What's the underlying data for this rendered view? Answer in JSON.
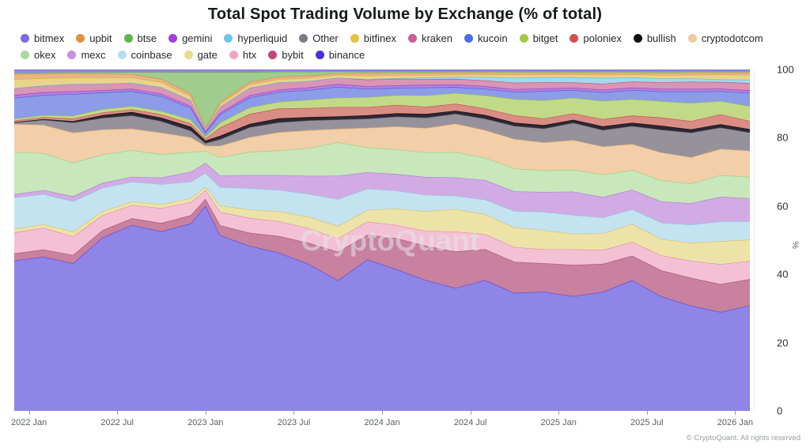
{
  "header": {
    "title": "Total Spot Trading Volume by Exchange (% of total)"
  },
  "watermark": {
    "text": "CryptoQuant"
  },
  "footer": {
    "text": "© CryptoQuant. All rights reserved"
  },
  "legend": {
    "rows": [
      [
        {
          "name": "bitmex",
          "color": "#7a6ae4"
        },
        {
          "name": "upbit",
          "color": "#e29140"
        },
        {
          "name": "btse",
          "color": "#5fb44c"
        },
        {
          "name": "gemini",
          "color": "#a43fd8"
        },
        {
          "name": "hyperliquid",
          "color": "#6ec5e8"
        },
        {
          "name": "Other",
          "color": "#7c7a87"
        },
        {
          "name": "bitfinex",
          "color": "#e2c23e"
        },
        {
          "name": "kraken",
          "color": "#c95f95"
        },
        {
          "name": "kucoin",
          "color": "#4e6de2"
        },
        {
          "name": "bitget",
          "color": "#a4c848"
        },
        {
          "name": "poloniex",
          "color": "#d45050"
        },
        {
          "name": "bullish",
          "color": "#101010"
        },
        {
          "name": "cryptodotcom",
          "color": "#efc9a0"
        }
      ],
      [
        {
          "name": "okex",
          "color": "#a8dba0"
        },
        {
          "name": "mexc",
          "color": "#c791e0"
        },
        {
          "name": "coinbase",
          "color": "#b5ddf0"
        },
        {
          "name": "gate",
          "color": "#e5d993"
        },
        {
          "name": "htx",
          "color": "#f2a5c3"
        },
        {
          "name": "bybit",
          "color": "#c1457f"
        },
        {
          "name": "binance",
          "color": "#4a30d8"
        }
      ]
    ]
  },
  "chart_data": {
    "type": "area",
    "stacked": true,
    "normalized_percent": true,
    "title": "Total Spot Trading Volume by Exchange (% of total)",
    "xlabel": "",
    "ylabel": "%",
    "ylim": [
      0,
      100
    ],
    "grid": false,
    "legend_position": "top",
    "x_unit": "months_since_2021_12",
    "x": [
      0,
      2,
      4,
      6,
      8,
      10,
      12,
      13,
      14,
      16,
      18,
      20,
      22,
      24,
      26,
      28,
      30,
      32,
      34,
      36,
      38,
      40,
      42,
      44,
      46,
      48,
      50
    ],
    "x_ticks": [
      {
        "t": 1,
        "label": "2022 Jan"
      },
      {
        "t": 7,
        "label": "2022 Jul"
      },
      {
        "t": 13,
        "label": "2023 Jan"
      },
      {
        "t": 19,
        "label": "2023 Jul"
      },
      {
        "t": 25,
        "label": "2024 Jan"
      },
      {
        "t": 31,
        "label": "2024 Jul"
      },
      {
        "t": 37,
        "label": "2025 Jan"
      },
      {
        "t": 43,
        "label": "2025 Jul"
      },
      {
        "t": 49,
        "label": "2026 Jan"
      }
    ],
    "y_ticks": [
      0,
      20,
      40,
      60,
      80,
      100
    ],
    "stack_order": "bottom_to_top",
    "series": [
      {
        "name": "binance",
        "fill": "#8e85e6",
        "line": "#5b49d6",
        "values": [
          43,
          46,
          44,
          52,
          56,
          54,
          57,
          60,
          53,
          50,
          48,
          45,
          39,
          46,
          43,
          40,
          37,
          40,
          36,
          36,
          34,
          36,
          40,
          35,
          32,
          30,
          32
        ]
      },
      {
        "name": "bybit",
        "fill": "#c8819f",
        "line": "#b0517e",
        "values": [
          2,
          2.2,
          2.5,
          2.2,
          2,
          2.5,
          2.5,
          2,
          3,
          4,
          5,
          6.5,
          8.5,
          7.5,
          9.5,
          10.5,
          11,
          9.5,
          9.5,
          8.6,
          9.3,
          8.5,
          7.5,
          8,
          8.5,
          8.5,
          8
        ]
      },
      {
        "name": "htx",
        "fill": "#f4c1d4",
        "line": "#e08cb1",
        "values": [
          6,
          6.5,
          5.5,
          4.5,
          4,
          4.5,
          4,
          2.5,
          4,
          4.5,
          4.5,
          4.5,
          4,
          4,
          4,
          4.6,
          6,
          4.6,
          4.5,
          4.2,
          4.6,
          4.2,
          4.2,
          4.6,
          5.2,
          6,
          5.5
        ]
      },
      {
        "name": "gate",
        "fill": "#ede3a8",
        "line": "#d6c06b",
        "values": [
          1,
          1,
          1.5,
          1.2,
          1,
          1.2,
          1.2,
          1,
          2,
          2.5,
          3,
          3.5,
          3.7,
          3.5,
          5,
          6,
          6.8,
          6,
          6,
          5.8,
          4.6,
          5,
          5.5,
          5,
          5.5,
          7,
          6.5
        ]
      },
      {
        "name": "coinbase",
        "fill": "#c4e3f0",
        "line": "#8fc8e0",
        "values": [
          9,
          9,
          9,
          7,
          6,
          6,
          5,
          4,
          5.5,
          6.5,
          6.5,
          7,
          8,
          6.5,
          5.5,
          5,
          4,
          4.5,
          5,
          5.5,
          5.6,
          4.8,
          4.5,
          5,
          5.5,
          6,
          5.5
        ]
      },
      {
        "name": "mexc",
        "fill": "#d2abe4",
        "line": "#b27cd6",
        "values": [
          1,
          1.2,
          1.5,
          1.5,
          1.5,
          2,
          3,
          3,
          3.5,
          4,
          4.5,
          5.5,
          7,
          5,
          5,
          5.5,
          5.5,
          6,
          6,
          6,
          6.9,
          6.2,
          6,
          6.5,
          6.5,
          7.5,
          7
        ]
      },
      {
        "name": "okex",
        "fill": "#c8e8bc",
        "line": "#94cf85",
        "values": [
          12,
          11,
          10,
          8.5,
          8,
          7,
          6,
          3.5,
          5.5,
          7,
          7.5,
          8.5,
          10,
          7.5,
          7.5,
          7.5,
          7.6,
          6.8,
          7,
          6.5,
          6.5,
          6.8,
          6,
          6.5,
          6,
          6.5,
          6.5
        ]
      },
      {
        "name": "cryptodotcom",
        "fill": "#f2cfa8",
        "line": "#e0a872",
        "values": [
          8,
          8.5,
          9,
          7.5,
          6.5,
          6.5,
          4.5,
          1.5,
          3.5,
          4.5,
          5.5,
          5.5,
          4,
          6,
          7,
          7.5,
          8.6,
          8.5,
          9,
          8.5,
          8.8,
          8.5,
          8,
          8.5,
          8,
          8,
          8
        ]
      },
      {
        "name": "Other",
        "fill": "#96929c",
        "line": "#5f5b66",
        "values": [
          0.5,
          1.5,
          3,
          3.5,
          4,
          3.5,
          2,
          0.8,
          2,
          3,
          3,
          3,
          2.8,
          2.8,
          3,
          3.2,
          3,
          3.5,
          4,
          4.2,
          5.1,
          5,
          5.5,
          7,
          7.5,
          6.5,
          5.5
        ]
      },
      {
        "name": "bullish",
        "fill": "#2e2733",
        "line": "#0d0a10",
        "values": [
          0,
          0.2,
          0.4,
          0.8,
          1,
          1,
          1.2,
          0.7,
          1,
          1,
          1.2,
          1,
          0.9,
          1,
          1,
          1.1,
          0.9,
          1.1,
          1,
          1,
          0.9,
          1.1,
          1,
          1.2,
          1,
          1,
          1
        ]
      },
      {
        "name": "poloniex",
        "fill": "#d98d85",
        "line": "#c4554d",
        "values": [
          0.5,
          0.6,
          0.8,
          0.8,
          0.8,
          1,
          1,
          0.6,
          2.5,
          3,
          3,
          2.8,
          2.8,
          2.5,
          2.5,
          2.2,
          2.1,
          2,
          2.2,
          2,
          1.9,
          2.2,
          2.2,
          2.5,
          2.5,
          3,
          2.5
        ]
      },
      {
        "name": "bitget",
        "fill": "#c2da87",
        "line": "#9cc04e",
        "values": [
          0.5,
          0.6,
          0.8,
          1,
          1,
          1,
          1.2,
          0.6,
          1.5,
          2,
          2,
          2.5,
          2.8,
          3,
          3,
          3.5,
          3.2,
          4,
          5,
          5.5,
          4.6,
          5.5,
          5,
          5,
          5.5,
          4,
          4.5
        ]
      },
      {
        "name": "kucoin",
        "fill": "#8c9ce8",
        "line": "#4d62d9",
        "values": [
          6,
          6,
          6.5,
          5,
          4.5,
          4.5,
          3.5,
          1.2,
          2.5,
          3,
          3,
          3,
          3.2,
          2.5,
          2.2,
          2.4,
          1.8,
          2,
          2.2,
          2.8,
          2.3,
          2.6,
          2.8,
          3,
          3.5,
          3,
          4
        ]
      },
      {
        "name": "gemini",
        "fill": "#b77fdd",
        "line": "#953fd1",
        "values": [
          0.8,
          0.8,
          0.8,
          0.7,
          0.7,
          0.7,
          0.6,
          0.3,
          0.5,
          0.7,
          0.7,
          0.8,
          0.9,
          0.8,
          0.8,
          0.8,
          0.8,
          0.8,
          0.8,
          0.8,
          0.7,
          0.8,
          0.8,
          0.8,
          0.8,
          0.8,
          0.8
        ]
      },
      {
        "name": "kraken",
        "fill": "#d995b4",
        "line": "#c05589",
        "values": [
          2,
          2,
          2.2,
          2,
          1.8,
          2,
          1.8,
          0.8,
          1.8,
          2.3,
          2.2,
          2,
          1.9,
          2,
          2,
          1.8,
          1.7,
          1.8,
          2,
          1.8,
          1.6,
          1.8,
          1.8,
          2,
          2.2,
          2,
          2.2
        ]
      },
      {
        "name": "hyperliquid",
        "fill": "#a5d8ea",
        "line": "#64bcdf",
        "values": [
          0,
          0,
          0,
          0,
          0,
          0,
          0,
          0,
          0,
          0,
          0,
          0,
          0,
          0.2,
          0.2,
          0.4,
          0.6,
          1,
          1.5,
          1.6,
          1.5,
          1.8,
          1.3,
          1.2,
          1,
          0.8,
          1
        ]
      },
      {
        "name": "bitfinex",
        "fill": "#e9d489",
        "line": "#d0b04a",
        "values": [
          2.5,
          2.2,
          2,
          1.8,
          1.6,
          1.5,
          1.2,
          0.3,
          0.8,
          1,
          1,
          0.9,
          0.8,
          1,
          0.9,
          0.8,
          0.7,
          0.8,
          0.9,
          0.8,
          0.8,
          0.9,
          0.9,
          1,
          1.1,
          1.5,
          1.5
        ]
      },
      {
        "name": "upbit",
        "fill": "#ecb387",
        "line": "#d98a43",
        "values": [
          1.5,
          1.4,
          1.2,
          1.2,
          1,
          1,
          0.8,
          0.2,
          0.6,
          0.7,
          0.7,
          0.7,
          0.5,
          0.8,
          0.7,
          0.7,
          0.6,
          0.6,
          0.7,
          0.6,
          0.6,
          0.7,
          0.6,
          0.7,
          0.7,
          0.6,
          0.7
        ]
      },
      {
        "name": "btse",
        "fill": "#a0cd8d",
        "line": "#6cb254",
        "values": [
          0.3,
          0.3,
          0.3,
          0.4,
          0.6,
          2,
          6.5,
          16,
          9,
          3,
          1.5,
          1.2,
          0.5,
          0.4,
          0.4,
          0.3,
          0.3,
          0.3,
          0.3,
          0.3,
          0.3,
          0.3,
          0.3,
          0.3,
          0.3,
          0.3,
          0.3
        ]
      },
      {
        "name": "bitmex",
        "fill": "#9486e6",
        "line": "#6a55d8",
        "values": [
          1,
          0.9,
          0.8,
          0.8,
          0.8,
          0.8,
          0.8,
          0.8,
          0.8,
          0.8,
          0.7,
          0.7,
          0.6,
          0.7,
          0.6,
          0.7,
          0.6,
          0.6,
          0.6,
          0.6,
          0.6,
          0.6,
          0.6,
          0.7,
          0.6,
          0.6,
          0.6
        ]
      }
    ]
  }
}
